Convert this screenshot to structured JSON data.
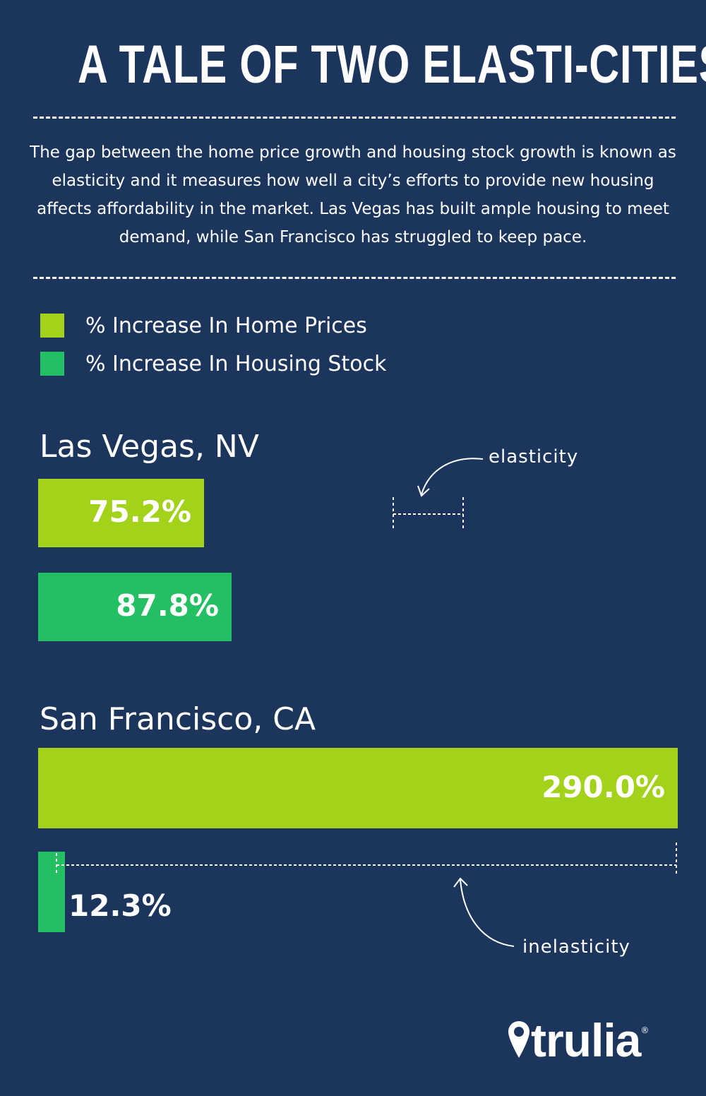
{
  "title": "A TALE OF TWO ELASTI-CITIES",
  "description": "The gap between the home price growth and housing stock growth is known as elasticity and it measures how well a city’s efforts to provide new housing affects affordability in the market. Las Vegas has built ample housing to meet demand, while San Francisco has struggled to keep pace.",
  "colors": {
    "background": "#1b355c",
    "home_prices": "#a2d21a",
    "housing_stock": "#22bf63"
  },
  "legend": [
    "% Increase In Home Prices",
    "% Increase In Housing Stock"
  ],
  "annotations": {
    "elasticity": "elasticity",
    "inelasticity": "inelasticity"
  },
  "brand": {
    "name": "trulia",
    "registered": "®",
    "icon": "location-pin-icon"
  },
  "chart_data": [
    {
      "type": "bar",
      "orientation": "horizontal",
      "title": "Las Vegas, NV",
      "series": [
        {
          "name": "% Increase In Home Prices",
          "values": [
            75.2
          ],
          "labels": [
            "75.2%"
          ]
        },
        {
          "name": "% Increase In Housing Stock",
          "values": [
            87.8
          ],
          "labels": [
            "87.8%"
          ]
        }
      ],
      "annotation": "elasticity"
    },
    {
      "type": "bar",
      "orientation": "horizontal",
      "title": "San Francisco, CA",
      "series": [
        {
          "name": "% Increase In Home Prices",
          "values": [
            290.0
          ],
          "labels": [
            "290.0%"
          ]
        },
        {
          "name": "% Increase In Housing Stock",
          "values": [
            12.3
          ],
          "labels": [
            "12.3%"
          ]
        }
      ],
      "annotation": "inelasticity"
    }
  ]
}
